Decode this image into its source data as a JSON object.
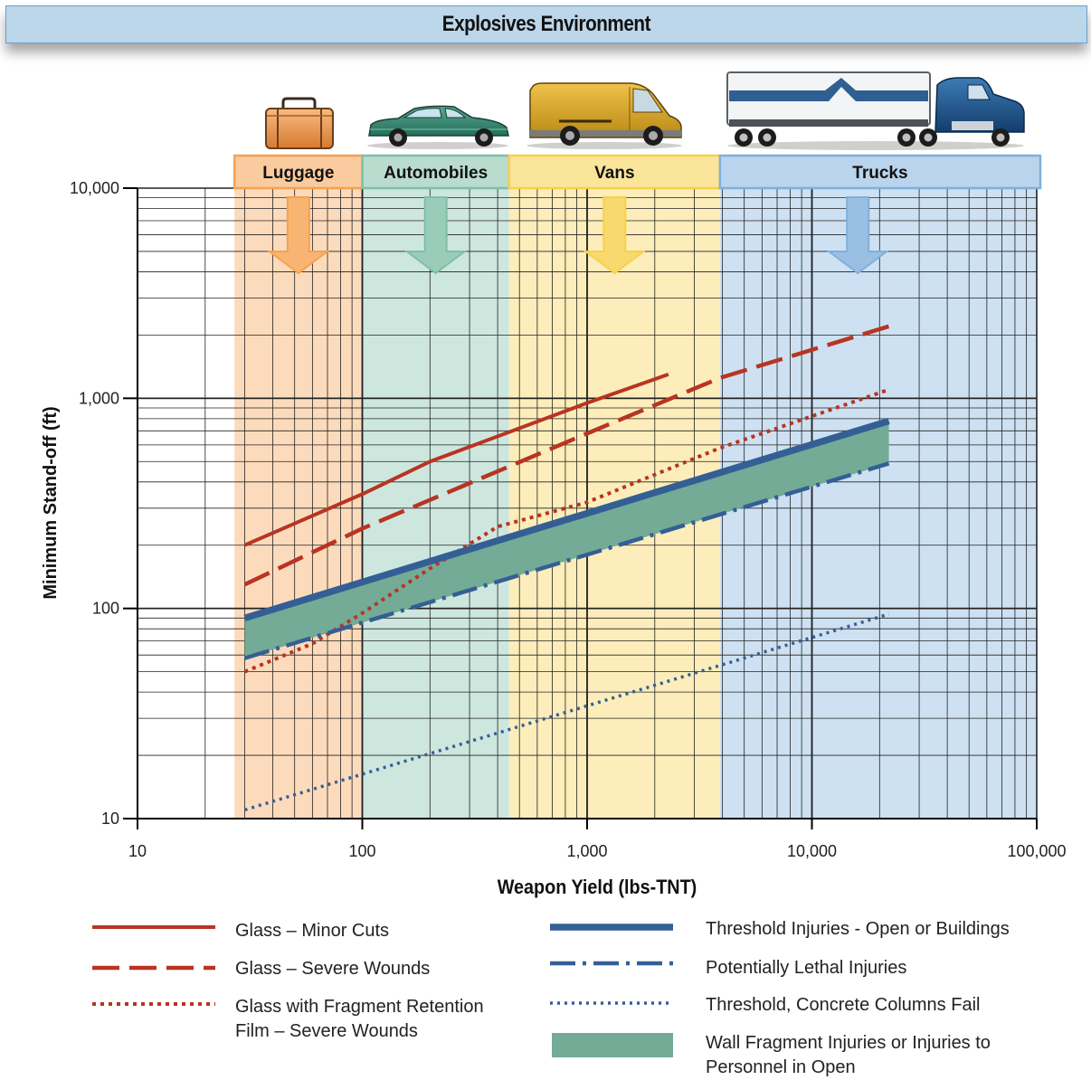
{
  "header": {
    "title": "Explosives Environment"
  },
  "colors": {
    "luggage": "#f6a14f",
    "automobiles": "#7fbfa8",
    "vans": "#f7d04a",
    "trucks": "#7fb0dc",
    "red": "#b83423",
    "blue": "#345f95",
    "band": "#73ab96"
  },
  "icons": [
    "suitcase-icon",
    "car-icon",
    "van-icon",
    "truck-icon"
  ],
  "chart_data": {
    "type": "line",
    "title": "",
    "xlabel": "Weapon Yield (lbs-TNT)",
    "ylabel": "Minimum Stand-off (ft)",
    "xscale": "log",
    "yscale": "log",
    "xlim": [
      10,
      100000
    ],
    "ylim": [
      10,
      10000
    ],
    "x_ticks": [
      "10",
      "100",
      "1,000",
      "10,000",
      "100,000"
    ],
    "y_ticks": [
      "10",
      "100",
      "1,000",
      "10,000"
    ],
    "grid": true,
    "categories": [
      {
        "name": "Luggage",
        "range": [
          27,
          100
        ],
        "color": "#f6a14f"
      },
      {
        "name": "Automobiles",
        "range": [
          100,
          450
        ],
        "color": "#7fbfa8"
      },
      {
        "name": "Vans",
        "range": [
          450,
          3900
        ],
        "color": "#f7d04a"
      },
      {
        "name": "Trucks",
        "range": [
          3900,
          100000
        ],
        "color": "#7fb0dc"
      }
    ],
    "series": [
      {
        "name": "Glass – Minor Cuts",
        "style": "solid",
        "color": "#b83423",
        "points": [
          [
            30,
            200
          ],
          [
            100,
            350
          ],
          [
            200,
            500
          ],
          [
            1000,
            950
          ],
          [
            2300,
            1300
          ]
        ]
      },
      {
        "name": "Glass – Severe Wounds",
        "style": "dashed",
        "color": "#b83423",
        "points": [
          [
            30,
            130
          ],
          [
            100,
            240
          ],
          [
            1000,
            680
          ],
          [
            3900,
            1250
          ],
          [
            22000,
            2200
          ]
        ]
      },
      {
        "name": "Glass with Fragment Retention\nFilm – Severe Wounds",
        "style": "dotted",
        "color": "#b83423",
        "points": [
          [
            30,
            50
          ],
          [
            60,
            68
          ],
          [
            100,
            95
          ],
          [
            200,
            155
          ],
          [
            400,
            245
          ],
          [
            1000,
            320
          ],
          [
            3900,
            580
          ],
          [
            22000,
            1100
          ]
        ]
      },
      {
        "name": "Threshold Injuries - Open or Buildings",
        "style": "thick",
        "color": "#345f95",
        "points": [
          [
            30,
            90
          ],
          [
            22000,
            780
          ]
        ]
      },
      {
        "name": "Potentially Lethal Injuries",
        "style": "dashdot",
        "color": "#345f95",
        "points": [
          [
            30,
            58
          ],
          [
            22000,
            490
          ]
        ]
      },
      {
        "name": "Threshold, Concrete Columns Fail",
        "style": "dotted",
        "color": "#345f95",
        "points": [
          [
            30,
            11
          ],
          [
            22000,
            94
          ]
        ]
      },
      {
        "name": "Wall Fragment Injuries or Injuries to\nPersonnel in Open",
        "style": "band",
        "color": "#73ab96",
        "upper": [
          [
            30,
            90
          ],
          [
            22000,
            780
          ]
        ],
        "lower": [
          [
            30,
            58
          ],
          [
            22000,
            490
          ]
        ]
      }
    ]
  }
}
